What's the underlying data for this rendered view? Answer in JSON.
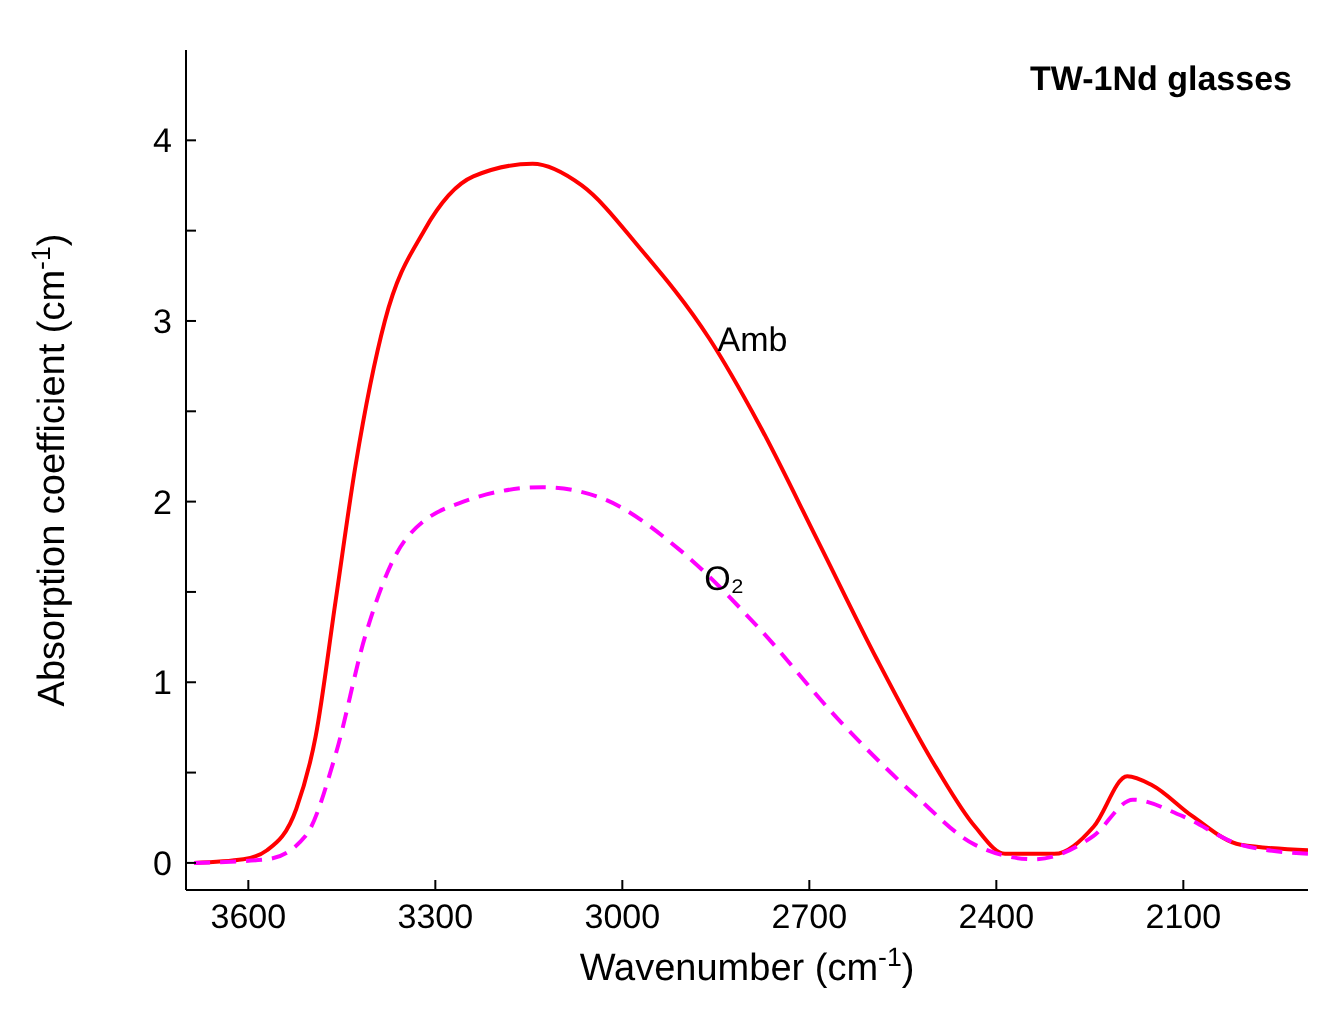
{
  "chart_data": {
    "type": "line",
    "title": "TW-1Nd glasses",
    "xlabel": "Wavenumber (cm$^{-1}$)",
    "ylabel": "Absorption coefficient (cm$^{-1}$)",
    "xlim": [
      3700,
      1900
    ],
    "xticks": [
      3600,
      3300,
      3000,
      2700,
      2400,
      2100
    ],
    "ylim": [
      -0.15,
      4.5
    ],
    "yticks": [
      0,
      {
        "value": 0.5,
        "label": null
      },
      1,
      {
        "value": 1.5,
        "label": null
      },
      2,
      {
        "value": 2.5,
        "label": null
      },
      3,
      {
        "value": 3.5,
        "label": null
      },
      4
    ],
    "marker": "none",
    "series": [
      {
        "name": "Amb",
        "color": "#ff0000",
        "line_style": "solid",
        "x": [
          3687,
          3608,
          3570,
          3523,
          3492,
          3460,
          3428,
          3381,
          3318,
          3239,
          3144,
          3065,
          2971,
          2860,
          2781,
          2686,
          2592,
          2497,
          2434,
          2386,
          2307,
          2244,
          2190,
          2150,
          2086,
          2008,
          1900
        ],
        "values": [
          0,
          0.02,
          0.07,
          0.3,
          0.7,
          1.45,
          2.2,
          3.0,
          3.5,
          3.8,
          3.87,
          3.75,
          3.4,
          2.9,
          2.43,
          1.78,
          1.13,
          0.53,
          0.2,
          0.05,
          0.05,
          0.2,
          0.48,
          0.43,
          0.26,
          0.1,
          0.07
        ]
      },
      {
        "name": "O₂",
        "color": "#ff00ff",
        "line_style": "dashed",
        "x": [
          3687,
          3570,
          3508,
          3460,
          3413,
          3350,
          3255,
          3128,
          3034,
          2907,
          2781,
          2655,
          2529,
          2434,
          2339,
          2244,
          2181,
          2102,
          2008,
          1900
        ],
        "values": [
          0,
          0.02,
          0.15,
          0.6,
          1.25,
          1.78,
          2.0,
          2.08,
          2.02,
          1.73,
          1.3,
          0.8,
          0.37,
          0.1,
          0.02,
          0.15,
          0.35,
          0.26,
          0.1,
          0.05
        ]
      }
    ]
  }
}
